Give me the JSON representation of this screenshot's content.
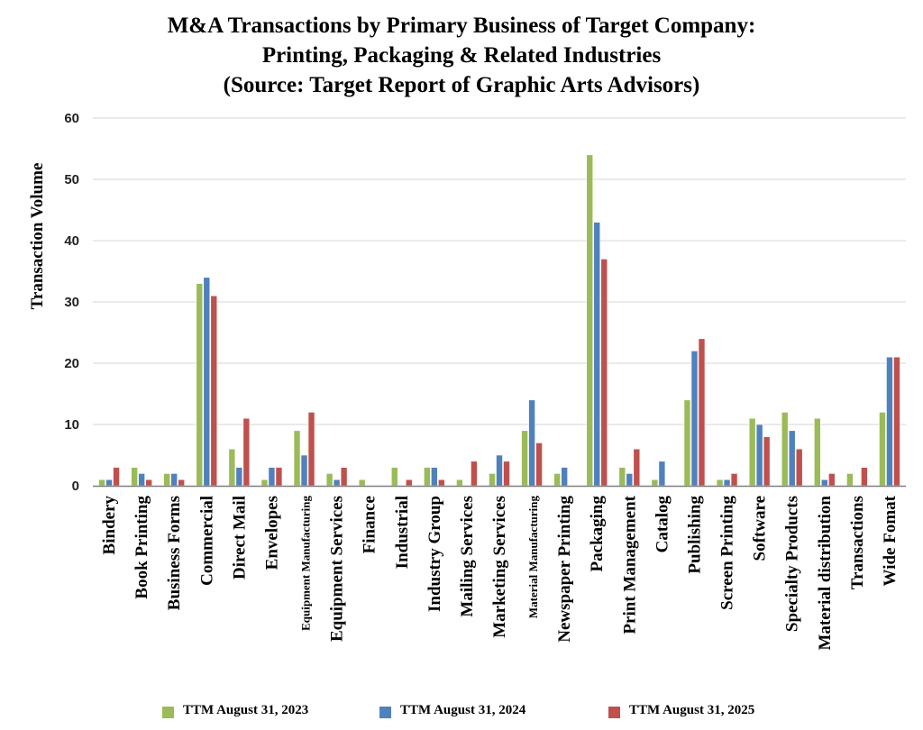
{
  "chart_data": {
    "type": "bar",
    "title": [
      "M&A Transactions by Primary Business of Target Company:",
      "Printing, Packaging & Related Industries",
      "(Source: Target Report of Graphic Arts Advisors)"
    ],
    "xlabel": "",
    "ylabel": "Transaction Volume",
    "ylim": [
      0,
      60
    ],
    "yticks": [
      "0",
      "10",
      "20",
      "30",
      "40",
      "50",
      "60"
    ],
    "grid": true,
    "legend_position": "bottom",
    "categories": [
      "Bindery",
      "Book Printing",
      "Business Forms",
      "Commercial",
      "Direct Mail",
      "Envelopes",
      "Equipment Manufacturing",
      "Equipment Services",
      "Finance",
      "Industrial",
      "Industry Group",
      "Mailing Services",
      "Marketing Services",
      "Material Manufacturing",
      "Newspaper Printing",
      "Packaging",
      "Print Management",
      "Catalog",
      "Publishing",
      "Screen Printing",
      "Software",
      "Specialty Products",
      "Material distribution",
      "Transactions",
      "Wide Fomat"
    ],
    "small_label_categories": [
      "Equipment Manufacturing",
      "Material Manufacturing"
    ],
    "series": [
      {
        "name": "TTM August 31, 2023",
        "color": "#9bbb59",
        "values": [
          1,
          3,
          2,
          33,
          6,
          1,
          9,
          2,
          1,
          3,
          3,
          1,
          2,
          9,
          2,
          54,
          3,
          1,
          14,
          1,
          11,
          12,
          11,
          2,
          12
        ]
      },
      {
        "name": "TTM August 31, 2024",
        "color": "#4f81bd",
        "values": [
          1,
          2,
          2,
          34,
          3,
          3,
          5,
          1,
          0,
          0,
          3,
          0,
          5,
          14,
          3,
          43,
          2,
          4,
          22,
          1,
          10,
          9,
          1,
          0,
          21
        ]
      },
      {
        "name": "TTM August 31, 2025",
        "color": "#c0504d",
        "values": [
          3,
          1,
          1,
          31,
          11,
          3,
          12,
          3,
          0,
          1,
          1,
          4,
          4,
          7,
          0,
          37,
          6,
          0,
          24,
          2,
          8,
          6,
          2,
          3,
          21
        ]
      }
    ]
  }
}
